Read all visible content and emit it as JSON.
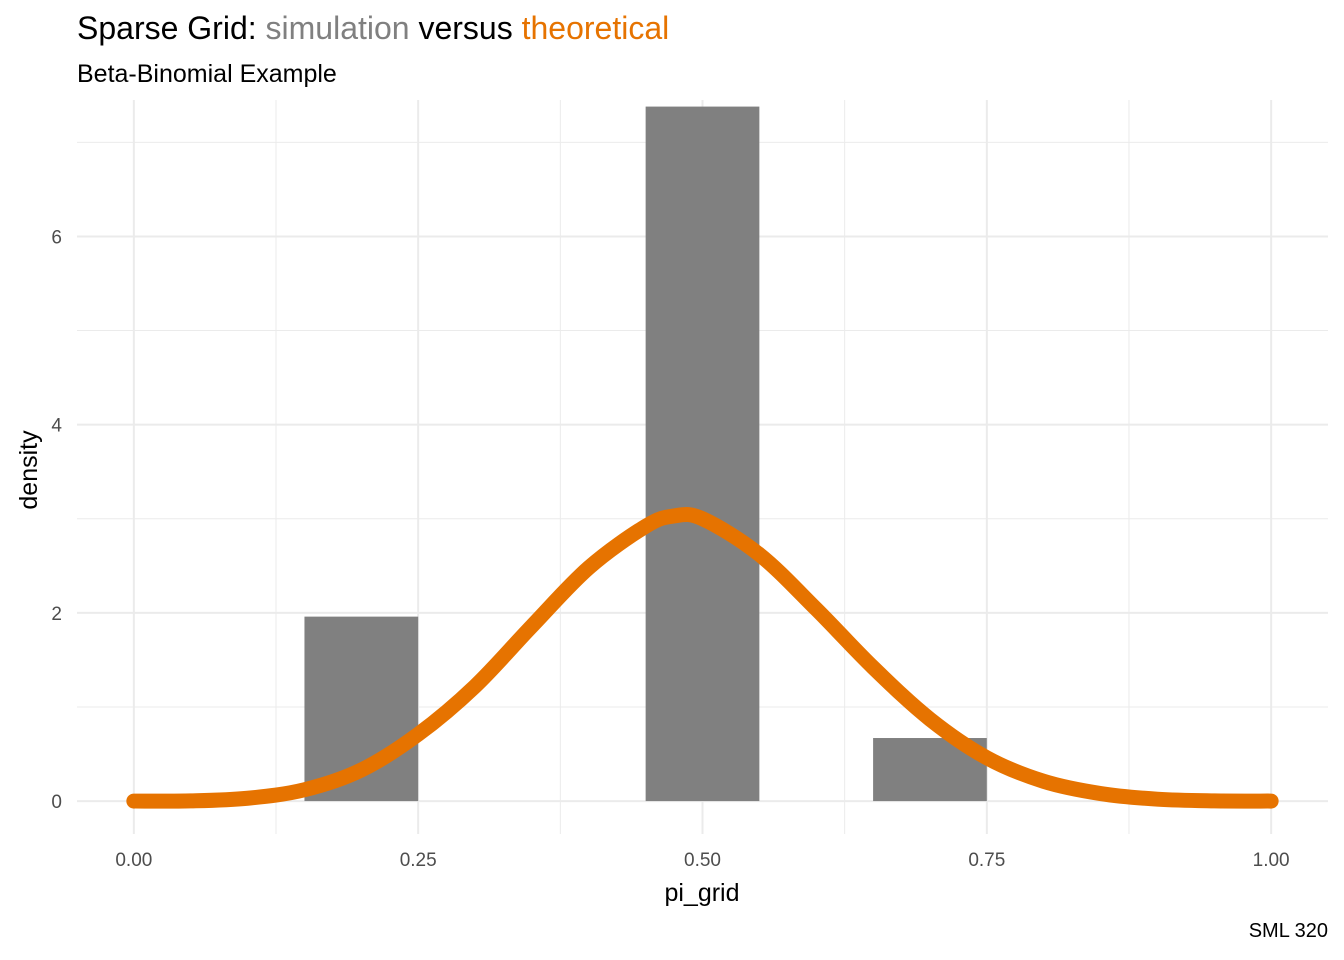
{
  "title": {
    "prefix": "Sparse Grid: ",
    "simulation": "simulation",
    "middle": " versus ",
    "theoretical": "theoretical"
  },
  "subtitle": "Beta-Binomial Example",
  "caption": "SML 320",
  "colors": {
    "simulation": "#808080",
    "theoretical": "#E67300",
    "grid": "#EBEBEB",
    "tick_text": "#4D4D4D"
  },
  "chart_data": {
    "type": "bar",
    "xlabel": "pi_grid",
    "ylabel": "density",
    "xlim": [
      -0.05,
      1.05
    ],
    "ylim": [
      -0.35,
      7.45
    ],
    "x_ticks": [
      0.0,
      0.25,
      0.5,
      0.75,
      1.0
    ],
    "x_tick_labels": [
      "0.00",
      "0.25",
      "0.50",
      "0.75",
      "1.00"
    ],
    "y_ticks": [
      0,
      2,
      4,
      6
    ],
    "y_tick_labels": [
      "0",
      "2",
      "4",
      "6"
    ],
    "grid": true,
    "histogram": {
      "name": "simulation",
      "bars": [
        {
          "x0": 0.15,
          "x1": 0.25,
          "density": 1.96
        },
        {
          "x0": 0.45,
          "x1": 0.55,
          "density": 7.38
        },
        {
          "x0": 0.65,
          "x1": 0.75,
          "density": 0.67
        }
      ]
    },
    "curve": {
      "name": "theoretical",
      "distribution": "Beta",
      "points": [
        {
          "x": 0.0,
          "y": 0.0
        },
        {
          "x": 0.05,
          "y": 0.002
        },
        {
          "x": 0.1,
          "y": 0.03
        },
        {
          "x": 0.15,
          "y": 0.12
        },
        {
          "x": 0.2,
          "y": 0.33
        },
        {
          "x": 0.25,
          "y": 0.71
        },
        {
          "x": 0.3,
          "y": 1.22
        },
        {
          "x": 0.35,
          "y": 1.86
        },
        {
          "x": 0.4,
          "y": 2.48
        },
        {
          "x": 0.45,
          "y": 2.92
        },
        {
          "x": 0.475,
          "y": 3.03
        },
        {
          "x": 0.5,
          "y": 3.0
        },
        {
          "x": 0.55,
          "y": 2.62
        },
        {
          "x": 0.6,
          "y": 2.04
        },
        {
          "x": 0.65,
          "y": 1.42
        },
        {
          "x": 0.7,
          "y": 0.87
        },
        {
          "x": 0.75,
          "y": 0.46
        },
        {
          "x": 0.8,
          "y": 0.21
        },
        {
          "x": 0.85,
          "y": 0.08
        },
        {
          "x": 0.9,
          "y": 0.02
        },
        {
          "x": 0.95,
          "y": 0.002
        },
        {
          "x": 1.0,
          "y": 0.0
        }
      ]
    }
  }
}
